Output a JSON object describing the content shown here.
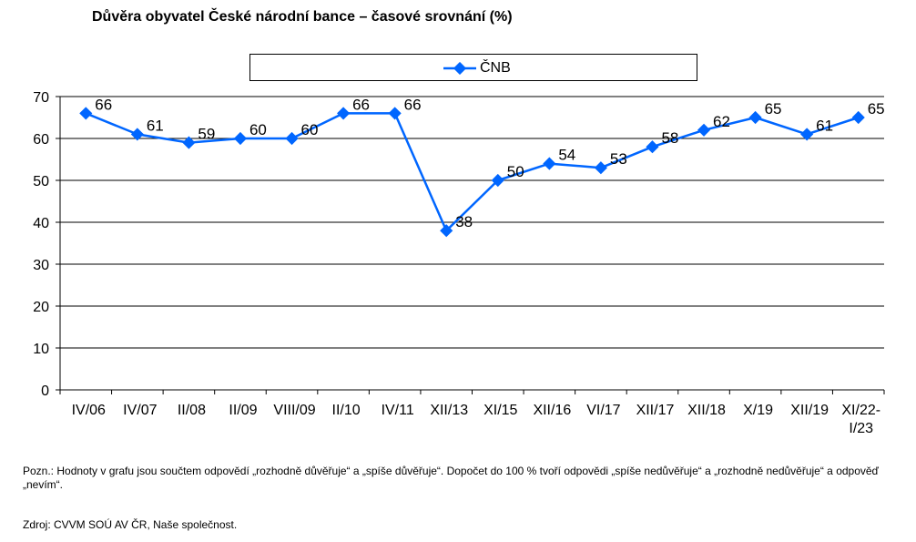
{
  "chart_data": {
    "type": "line",
    "title": "Důvěra obyvatel České národní bance – časové srovnání (%)",
    "categories": [
      "IV/06",
      "IV/07",
      "II/08",
      "II/09",
      "VIII/09",
      "II/10",
      "IV/11",
      "XII/13",
      "XI/15",
      "XII/16",
      "VI/17",
      "XII/17",
      "XII/18",
      "X/19",
      "XII/19",
      "XI/22-\nI/23"
    ],
    "series": [
      {
        "name": "ČNB",
        "values": [
          66,
          61,
          59,
          60,
          60,
          66,
          66,
          38,
          50,
          54,
          53,
          58,
          62,
          65,
          61,
          65
        ],
        "color": "#0066ff"
      }
    ],
    "ylim": [
      0,
      70
    ],
    "yticks": [
      0,
      10,
      20,
      30,
      40,
      50,
      60,
      70
    ],
    "grid": true,
    "legend_position": "top"
  },
  "note": "Pozn.: Hodnoty v grafu jsou součtem odpovědí „rozhodně důvěřuje“ a „spíše důvěřuje“. Dopočet do 100 % tvoří odpovědi „spíše nedůvěřuje“ a „rozhodně nedůvěřuje“ a odpověď „nevím“.",
  "source": "Zdroj: CVVM SOÚ AV ČR, Naše společnost."
}
